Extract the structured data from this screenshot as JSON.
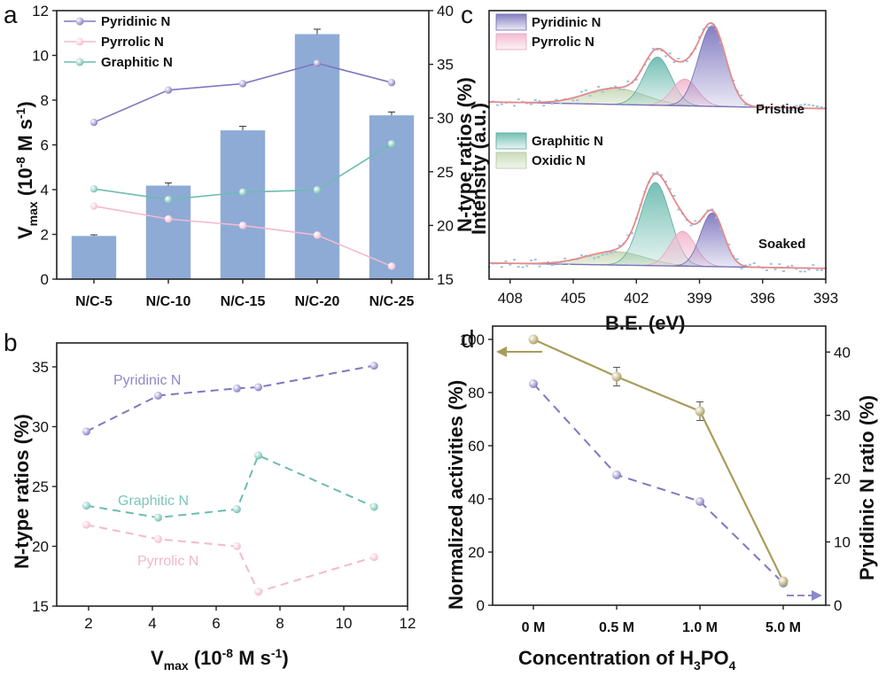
{
  "colors": {
    "pyridinic": "#7f78c0",
    "pyrrolic": "#f3b9cf",
    "graphitic": "#6dbcb0",
    "oxidic": "#c9d9b7",
    "bar": "#8eabd6",
    "envelope": "#e58a8a",
    "raw": "#9ec4e3",
    "activity": "#a89c5c"
  },
  "panel_a": {
    "label": "a",
    "ylabel_left": "V",
    "ylabel_left_sub": "max",
    "ylabel_left_rest": " (10",
    "ylabel_left_exp": "-8",
    "ylabel_left_unit": " M s",
    "ylabel_left_unit_exp": "-1",
    "ylabel_left_close": ")",
    "ylabel_right": "N-type ratios (%)",
    "legend": [
      "Pyridinic N",
      "Pyrrolic N",
      "Graphitic N"
    ]
  },
  "panel_b": {
    "label": "b",
    "ylabel": "N-type ratios (%)",
    "xlabel_main": "V",
    "xlabel_sub": "max",
    "xlabel_rest": " (10",
    "xlabel_exp": "-8",
    "xlabel_unit": " M s",
    "xlabel_unit_exp": "-1",
    "xlabel_close": ")",
    "annotations": [
      "Pyridinic N",
      "Graphitic N",
      "Pyrrolic N"
    ]
  },
  "panel_c": {
    "label": "c",
    "ylabel": "Intensity (a.u.)",
    "xlabel": "B.E. (eV)",
    "legend_top": [
      "Pyridinic N",
      "Pyrrolic N"
    ],
    "legend_bottom": [
      "Graphitic N",
      "Oxidic N"
    ],
    "sample_top": "Pristine",
    "sample_bottom": "Soaked"
  },
  "panel_d": {
    "label": "d",
    "ylabel_left": "Normalized activities (%)",
    "ylabel_right": "Pyridinic N ratio (%)",
    "xlabel_main": "Concentration of H",
    "xlabel_sub1": "3",
    "xlabel_mid": "PO",
    "xlabel_sub2": "4"
  },
  "chart_data": [
    {
      "type": "bar",
      "panel": "a",
      "categories": [
        "N/C-5",
        "N/C-10",
        "N/C-15",
        "N/C-20",
        "N/C-25"
      ],
      "ylim": [
        0,
        12
      ],
      "yticks": [
        0,
        2,
        4,
        6,
        8,
        10,
        12
      ],
      "y2lim": [
        15,
        40
      ],
      "y2ticks": [
        15,
        20,
        25,
        30,
        35,
        40
      ],
      "bars": {
        "values": [
          1.93,
          4.18,
          6.65,
          10.95,
          7.32
        ],
        "errors": [
          0.05,
          0.12,
          0.18,
          0.22,
          0.15
        ]
      },
      "series": [
        {
          "name": "Pyridinic N",
          "axis": "right",
          "values": [
            29.6,
            32.6,
            33.2,
            35.1,
            33.3
          ]
        },
        {
          "name": "Pyrrolic N",
          "axis": "right",
          "values": [
            21.8,
            20.6,
            20.0,
            19.1,
            16.2
          ]
        },
        {
          "name": "Graphitic N",
          "axis": "right",
          "values": [
            23.4,
            22.4,
            23.1,
            23.3,
            27.6
          ]
        }
      ]
    },
    {
      "type": "scatter",
      "panel": "b",
      "xlim": [
        1,
        12
      ],
      "xticks": [
        2,
        4,
        6,
        8,
        10,
        12
      ],
      "ylim": [
        15,
        37
      ],
      "yticks": [
        15,
        20,
        25,
        30,
        35
      ],
      "series": [
        {
          "name": "Pyridinic N",
          "points": [
            [
              1.93,
              29.6
            ],
            [
              4.18,
              32.6
            ],
            [
              6.65,
              33.2
            ],
            [
              7.32,
              33.3
            ],
            [
              10.95,
              35.1
            ]
          ]
        },
        {
          "name": "Graphitic N",
          "points": [
            [
              1.93,
              23.4
            ],
            [
              4.18,
              22.4
            ],
            [
              6.65,
              23.1
            ],
            [
              7.32,
              27.6
            ],
            [
              10.95,
              23.3
            ]
          ]
        },
        {
          "name": "Pyrrolic N",
          "points": [
            [
              1.93,
              21.8
            ],
            [
              4.18,
              20.6
            ],
            [
              6.65,
              20.0
            ],
            [
              7.32,
              16.2
            ],
            [
              10.95,
              19.1
            ]
          ]
        }
      ]
    },
    {
      "type": "area",
      "panel": "c",
      "xlim": [
        409,
        393
      ],
      "xticks": [
        408,
        405,
        402,
        399,
        396,
        393
      ],
      "spectra": [
        {
          "name": "Pristine",
          "offset": 0.62,
          "baseline": [
            0.04,
            0.015
          ],
          "peaks": [
            {
              "name": "Pyridinic N",
              "center": 398.4,
              "height": 0.3,
              "width": 0.65
            },
            {
              "name": "Pyrrolic N",
              "center": 399.7,
              "height": 0.1,
              "width": 0.6
            },
            {
              "name": "Graphitic N",
              "center": 401.0,
              "height": 0.18,
              "width": 0.65
            },
            {
              "name": "Oxidic N",
              "center": 403.0,
              "height": 0.06,
              "width": 1.4
            }
          ]
        },
        {
          "name": "Soaked",
          "offset": 0.04,
          "baseline": [
            0.02,
            0.0
          ],
          "peaks": [
            {
              "name": "Pyridinic N",
              "center": 398.4,
              "height": 0.2,
              "width": 0.55
            },
            {
              "name": "Pyrrolic N",
              "center": 399.8,
              "height": 0.13,
              "width": 0.6
            },
            {
              "name": "Graphitic N",
              "center": 401.1,
              "height": 0.31,
              "width": 0.7
            },
            {
              "name": "Oxidic N",
              "center": 403.0,
              "height": 0.05,
              "width": 1.4
            }
          ]
        }
      ]
    },
    {
      "type": "line",
      "panel": "d",
      "categories": [
        "0 M",
        "0.5 M",
        "1.0 M",
        "5.0 M"
      ],
      "ylim": [
        0,
        105
      ],
      "yticks": [
        0,
        20,
        40,
        60,
        80,
        100
      ],
      "y2lim": [
        0,
        44.1
      ],
      "y2ticks": [
        0,
        10,
        20,
        30,
        40
      ],
      "series": [
        {
          "name": "Normalized activities",
          "axis": "left",
          "values": [
            100,
            86,
            73,
            9
          ],
          "errors": [
            0,
            3.5,
            3.5,
            0
          ]
        },
        {
          "name": "Pyridinic N ratio",
          "axis": "right",
          "values": [
            35.0,
            20.6,
            16.4,
            3.5
          ]
        }
      ]
    }
  ]
}
